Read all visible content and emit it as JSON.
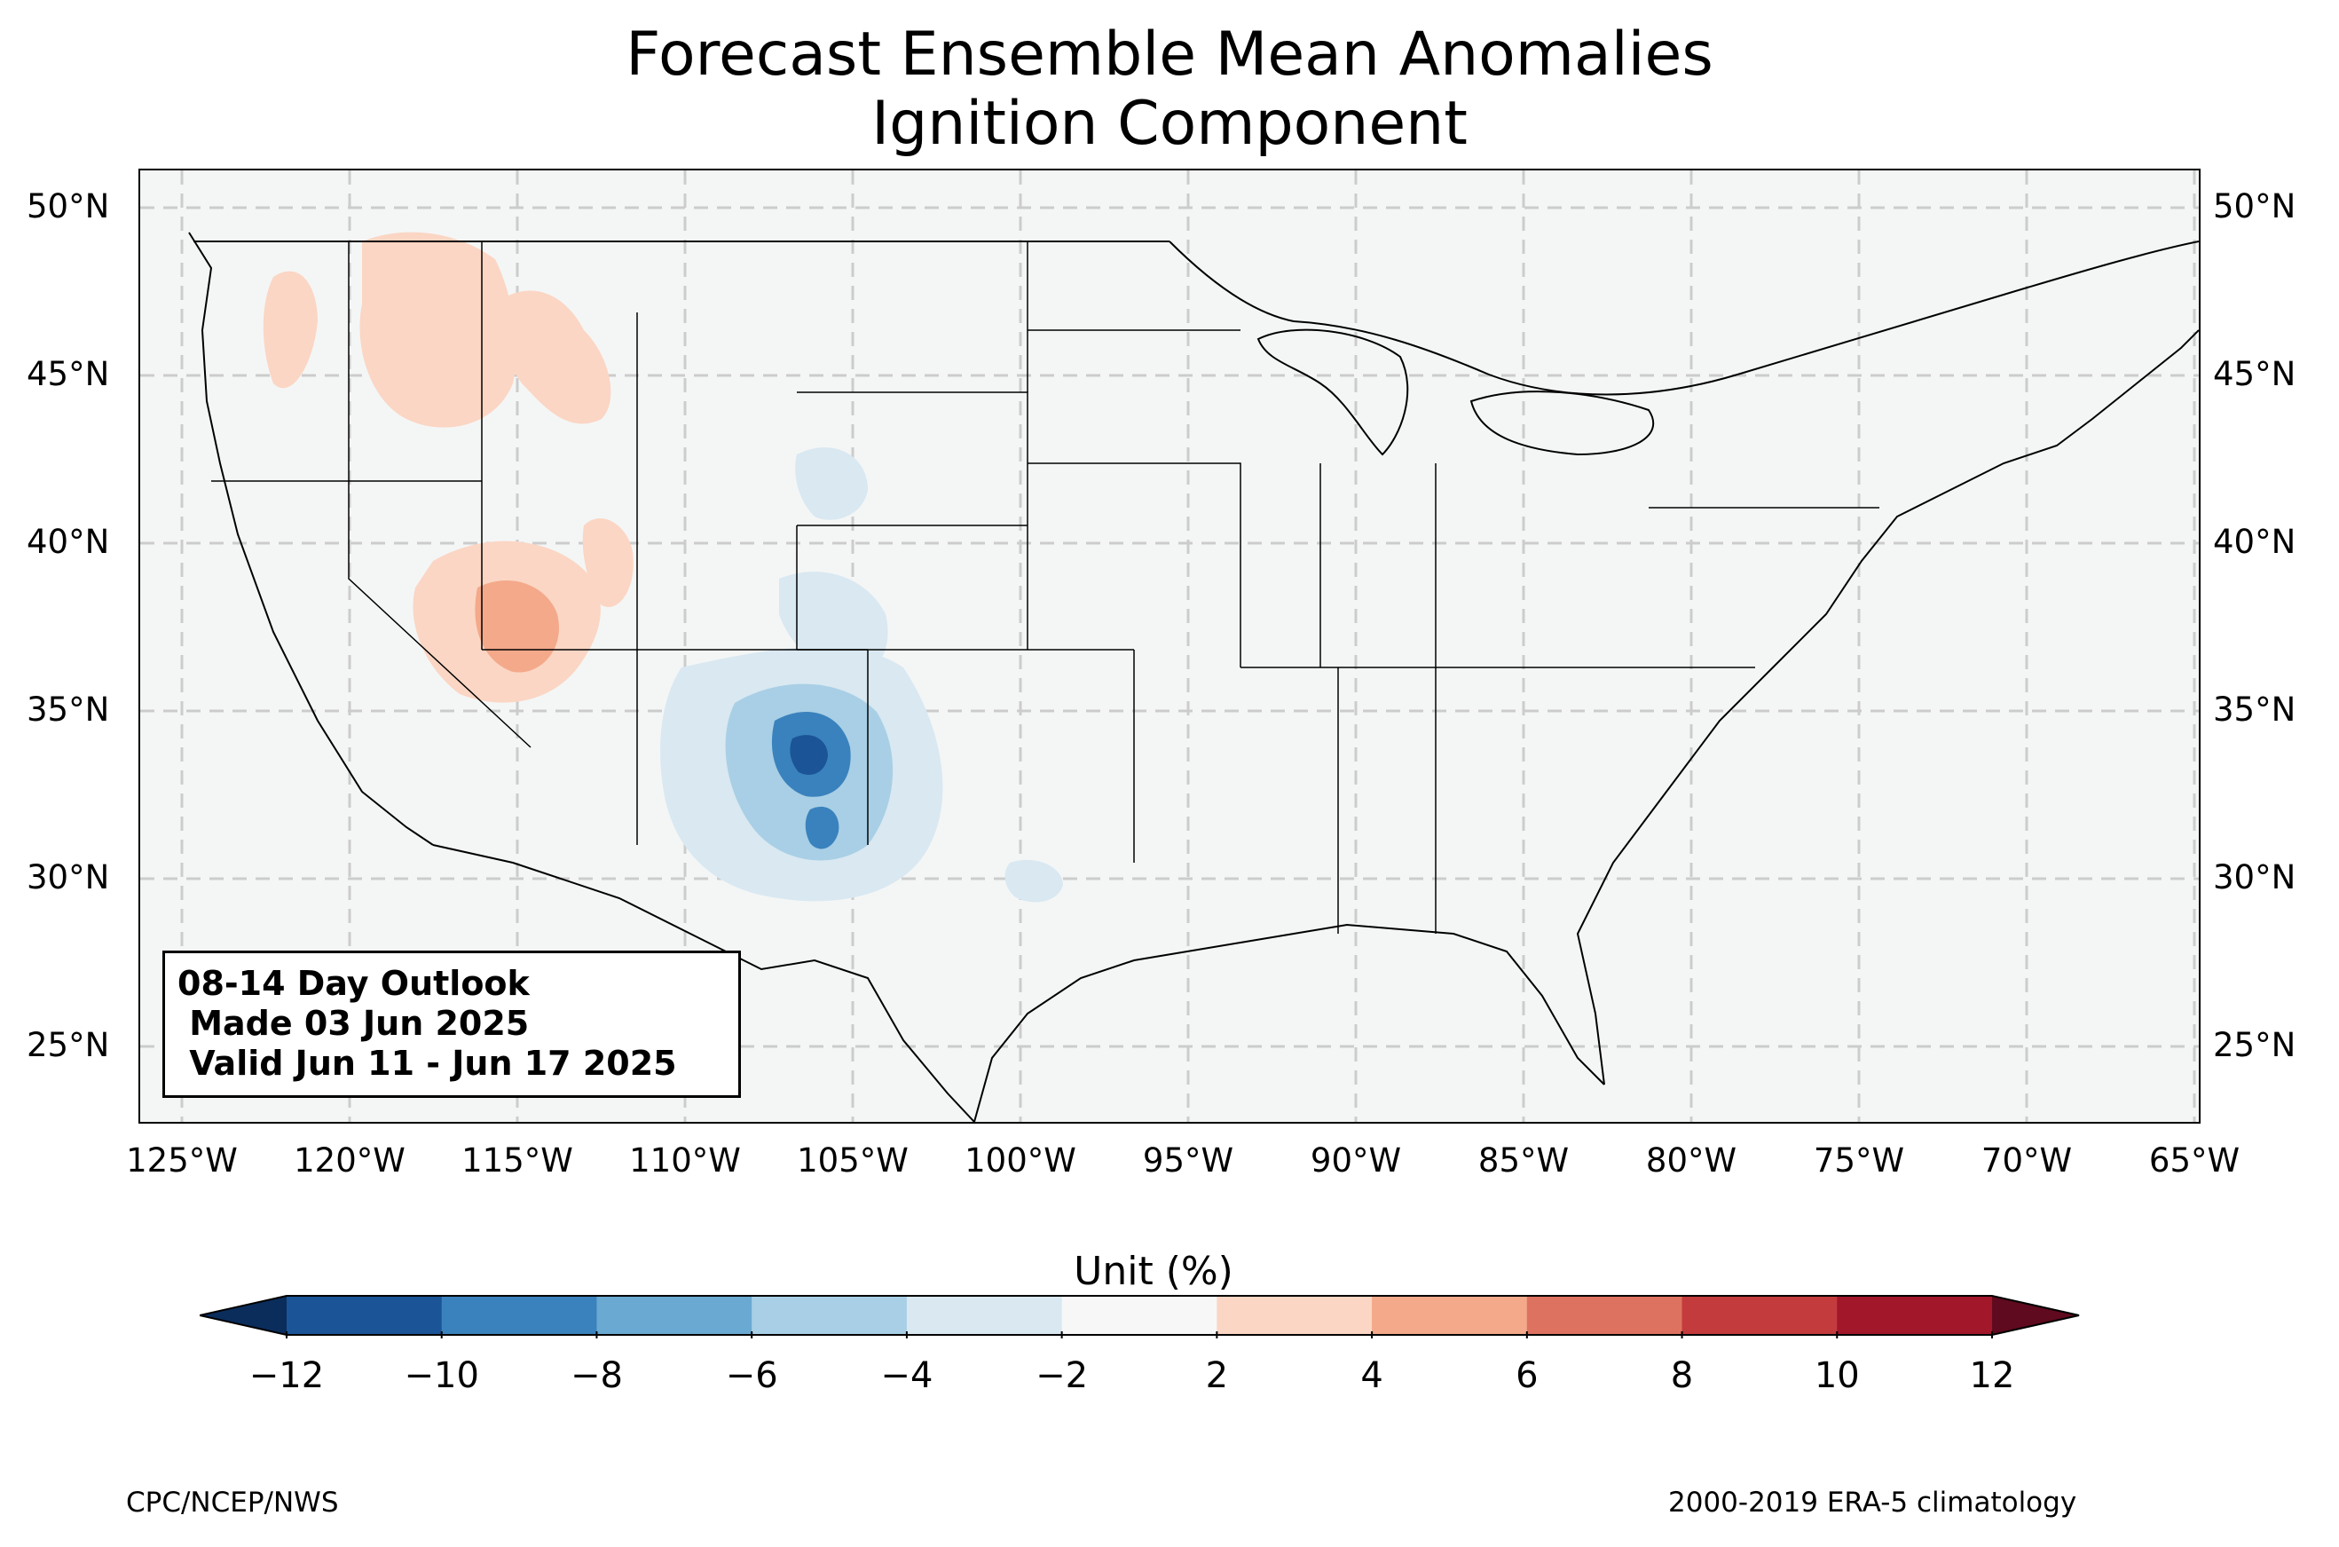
{
  "title": {
    "line1": "Forecast Ensemble Mean Anomalies",
    "line2": "Ignition Component"
  },
  "map": {
    "region": "Contiguous United States",
    "lat_ticks": [
      "50°N",
      "45°N",
      "40°N",
      "35°N",
      "30°N",
      "25°N"
    ],
    "lon_ticks": [
      "125°W",
      "120°W",
      "115°W",
      "110°W",
      "105°W",
      "100°W",
      "95°W",
      "90°W",
      "85°W",
      "80°W",
      "75°W",
      "70°W",
      "65°W"
    ],
    "gridlines": true,
    "anomaly_regions": [
      {
        "area": "Northwest (OR/WA/ID)",
        "sign": "positive",
        "range": "2 to 4"
      },
      {
        "area": "Nevada / Utah",
        "sign": "positive",
        "range": "2 to 6"
      },
      {
        "area": "New Mexico / Colorado",
        "sign": "negative",
        "range": "-2 to -10"
      },
      {
        "area": "West Texas",
        "sign": "negative",
        "range": "-2 to -4"
      }
    ]
  },
  "outlook_box": {
    "line1": "08-14 Day Outlook",
    "line2": " Made 03 Jun 2025",
    "line3": " Valid Jun 11 - Jun 17 2025"
  },
  "colorbar": {
    "label": "Unit (%)",
    "ticks": [
      "−12",
      "−10",
      "−8",
      "−6",
      "−4",
      "−2",
      "2",
      "4",
      "6",
      "8",
      "10",
      "12"
    ],
    "colors": [
      "#1b5497",
      "#3a82bd",
      "#6aa9d2",
      "#a8cfe5",
      "#d9e8f1",
      "#f7f7f7",
      "#fbd6c4",
      "#f3a98a",
      "#de7260",
      "#c33b3d",
      "#a3172b"
    ],
    "under_color": "#0a2d5c",
    "over_color": "#5f0a1e"
  },
  "footer": {
    "left": "CPC/NCEP/NWS",
    "right": "2000-2019 ERA-5 climatology"
  }
}
